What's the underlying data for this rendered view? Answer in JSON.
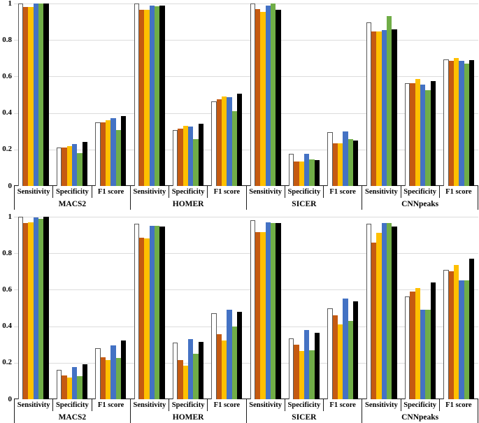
{
  "figure": {
    "background": "#ffffff",
    "gridline_color": "#dcdcdc",
    "axis_color": "#1a1a1a",
    "text_color": "#000000"
  },
  "chart_data": [
    {
      "type": "bar",
      "title": "",
      "xlabel": "",
      "ylabel": "",
      "ylim": [
        0,
        1
      ],
      "yticks": [
        1,
        0.8,
        0.6,
        0.4,
        0.2,
        0
      ],
      "ytick_labels": [
        "1",
        "0.8",
        "0.6",
        "0.4",
        "0.2",
        "0"
      ],
      "grid": "horizontal",
      "legend": "none",
      "groups": [
        "MACS2",
        "HOMER",
        "SICER",
        "CNNpeaks"
      ],
      "metrics": [
        "Sensitivity",
        "Specificity",
        "F1 score"
      ],
      "series": [
        {
          "color_name": "white",
          "color": "#FFFFFF",
          "border": "#595959",
          "values": [
            [
              1.0,
              0.21,
              0.35
            ],
            [
              1.0,
              0.305,
              0.465
            ],
            [
              1.0,
              0.175,
              0.295
            ],
            [
              0.895,
              0.565,
              0.695
            ]
          ]
        },
        {
          "color_name": "orange",
          "color": "#C55A11",
          "border": "#C55A11",
          "values": [
            [
              0.98,
              0.21,
              0.35
            ],
            [
              0.965,
              0.315,
              0.475
            ],
            [
              0.97,
              0.135,
              0.235
            ],
            [
              0.845,
              0.565,
              0.685
            ]
          ]
        },
        {
          "color_name": "yellow",
          "color": "#FFC000",
          "border": "#FFC000",
          "values": [
            [
              0.98,
              0.22,
              0.36
            ],
            [
              0.965,
              0.33,
              0.49
            ],
            [
              0.955,
              0.135,
              0.235
            ],
            [
              0.845,
              0.585,
              0.7
            ]
          ]
        },
        {
          "color_name": "blue",
          "color": "#4472C4",
          "border": "#4472C4",
          "values": [
            [
              1.0,
              0.23,
              0.37
            ],
            [
              0.99,
              0.325,
              0.485
            ],
            [
              0.99,
              0.175,
              0.3
            ],
            [
              0.855,
              0.555,
              0.685
            ]
          ]
        },
        {
          "color_name": "green",
          "color": "#70AD47",
          "border": "#70AD47",
          "values": [
            [
              1.0,
              0.18,
              0.305
            ],
            [
              0.985,
              0.255,
              0.41
            ],
            [
              1.0,
              0.145,
              0.255
            ],
            [
              0.93,
              0.525,
              0.67
            ]
          ]
        },
        {
          "color_name": "black",
          "color": "#000000",
          "border": "#000000",
          "values": [
            [
              1.0,
              0.24,
              0.385
            ],
            [
              0.99,
              0.34,
              0.505
            ],
            [
              0.965,
              0.14,
              0.25
            ],
            [
              0.86,
              0.575,
              0.69
            ]
          ]
        }
      ]
    },
    {
      "type": "bar",
      "title": "",
      "xlabel": "",
      "ylabel": "",
      "ylim": [
        0,
        1
      ],
      "yticks": [
        1,
        0.8,
        0.6,
        0.4,
        0.2,
        0
      ],
      "ytick_labels": [
        "1",
        "0.8",
        "0.6",
        "0.4",
        "0.2",
        "0"
      ],
      "grid": "horizontal",
      "legend": "none",
      "groups": [
        "MACS2",
        "HOMER",
        "SICER",
        "CNNpeaks"
      ],
      "metrics": [
        "Sensitivity",
        "Specificity",
        "F1 score"
      ],
      "series": [
        {
          "color_name": "white",
          "color": "#FFFFFF",
          "border": "#595959",
          "values": [
            [
              1.0,
              0.16,
              0.28
            ],
            [
              0.96,
              0.31,
              0.47
            ],
            [
              0.98,
              0.335,
              0.5
            ],
            [
              0.96,
              0.565,
              0.71
            ]
          ]
        },
        {
          "color_name": "orange",
          "color": "#C55A11",
          "border": "#C55A11",
          "values": [
            [
              0.965,
              0.13,
              0.23
            ],
            [
              0.885,
              0.215,
              0.355
            ],
            [
              0.915,
              0.3,
              0.46
            ],
            [
              0.86,
              0.59,
              0.7
            ]
          ]
        },
        {
          "color_name": "yellow",
          "color": "#FFC000",
          "border": "#FFC000",
          "values": [
            [
              0.97,
              0.12,
              0.215
            ],
            [
              0.88,
              0.185,
              0.32
            ],
            [
              0.915,
              0.265,
              0.41
            ],
            [
              0.91,
              0.61,
              0.735
            ]
          ]
        },
        {
          "color_name": "blue",
          "color": "#4472C4",
          "border": "#4472C4",
          "values": [
            [
              0.995,
              0.175,
              0.295
            ],
            [
              0.95,
              0.33,
              0.49
            ],
            [
              0.97,
              0.38,
              0.55
            ],
            [
              0.965,
              0.49,
              0.65
            ]
          ]
        },
        {
          "color_name": "green",
          "color": "#70AD47",
          "border": "#70AD47",
          "values": [
            [
              0.99,
              0.125,
              0.225
            ],
            [
              0.95,
              0.25,
              0.4
            ],
            [
              0.965,
              0.27,
              0.43
            ],
            [
              0.965,
              0.49,
              0.65
            ]
          ]
        },
        {
          "color_name": "black",
          "color": "#000000",
          "border": "#000000",
          "values": [
            [
              1.0,
              0.19,
              0.32
            ],
            [
              0.945,
              0.315,
              0.48
            ],
            [
              0.965,
              0.365,
              0.535
            ],
            [
              0.945,
              0.64,
              0.77
            ]
          ]
        }
      ]
    }
  ],
  "layout_note": "two stacked grouped bar charts, 4 peak-caller groups x 3 metrics x 6 unlabeled series"
}
